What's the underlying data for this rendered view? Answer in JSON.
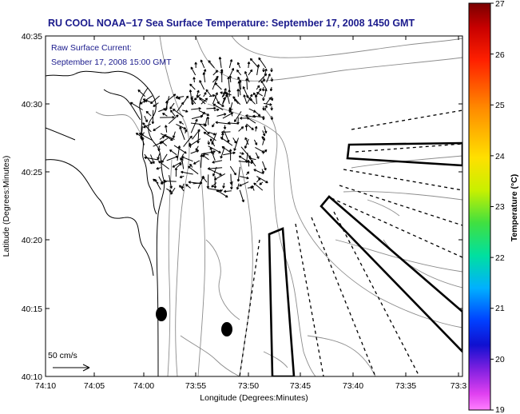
{
  "title": "RU COOL  NOAA−17  Sea Surface Temperature:  September 17, 2008 1450 GMT",
  "legend": {
    "line1": "Raw Surface Current:",
    "line2": "September 17, 2008 15:00 GMT"
  },
  "axes": {
    "xlabel": "Longitude (Degrees:Minutes)",
    "ylabel": "Latitude (Degrees:Minutes)",
    "xticks": [
      "74:10",
      "74:05",
      "74:00",
      "73:55",
      "73:50",
      "73:45",
      "73:40",
      "73:35",
      "73:3"
    ],
    "yticks": [
      "40:35",
      "40:30",
      "40:25",
      "40:20",
      "40:15",
      "40:10"
    ]
  },
  "colorbar": {
    "label": "Temperature (°C)",
    "min": 19,
    "max": 27,
    "ticks": [
      "27",
      "26",
      "25",
      "24",
      "23",
      "22",
      "21",
      "20",
      "19"
    ]
  },
  "scale_label": "50 cm/s"
}
